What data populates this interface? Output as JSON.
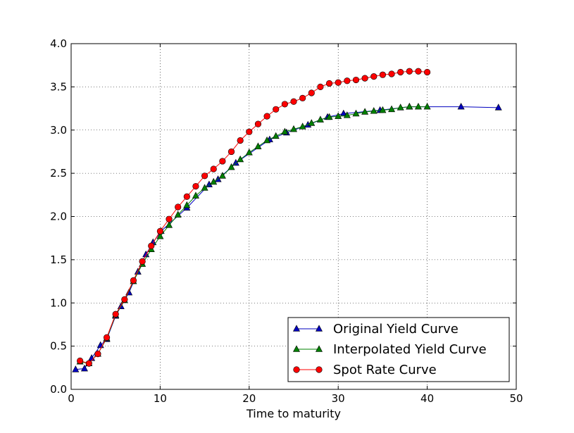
{
  "chart_data": {
    "type": "line",
    "title": "",
    "xlabel": "Time to maturity",
    "ylabel": "",
    "xlim": [
      0,
      50
    ],
    "ylim": [
      0.0,
      4.0
    ],
    "xticks": [
      "0",
      "10",
      "20",
      "30",
      "40",
      "50"
    ],
    "yticks": [
      "0.0",
      "0.5",
      "1.0",
      "1.5",
      "2.0",
      "2.5",
      "3.0",
      "3.5",
      "4.0"
    ],
    "grid": true,
    "legend_position": "lower-right",
    "series": [
      {
        "name": "Original Yield Curve",
        "color": "#0000bf",
        "marker": "triangle",
        "x": [
          0.5,
          1.5,
          2.3,
          3.3,
          4.0,
          5.0,
          5.6,
          6.5,
          7.5,
          8.4,
          9.2,
          10.1,
          13.0,
          15.5,
          16.5,
          18.5,
          22.3,
          24.2,
          26.6,
          28.8,
          30.6,
          34.7,
          38.0,
          43.8,
          48.0
        ],
        "y": [
          0.23,
          0.24,
          0.36,
          0.51,
          0.58,
          0.85,
          0.96,
          1.12,
          1.36,
          1.56,
          1.7,
          1.83,
          2.1,
          2.37,
          2.43,
          2.62,
          2.89,
          2.97,
          3.06,
          3.15,
          3.19,
          3.23,
          3.27,
          3.27,
          3.26
        ]
      },
      {
        "name": "Interpolated Yield Curve",
        "color": "#008000",
        "marker": "triangle",
        "x": [
          1,
          2,
          3,
          4,
          5,
          6,
          7,
          8,
          9,
          10,
          11,
          12,
          13,
          14,
          15,
          16,
          17,
          18,
          19,
          20,
          21,
          22,
          23,
          24,
          25,
          26,
          27,
          28,
          29,
          30,
          31,
          32,
          33,
          34,
          35,
          36,
          37,
          38,
          39,
          40
        ],
        "y": [
          0.32,
          0.3,
          0.41,
          0.59,
          0.86,
          1.03,
          1.25,
          1.45,
          1.62,
          1.77,
          1.9,
          2.02,
          2.13,
          2.24,
          2.33,
          2.4,
          2.47,
          2.57,
          2.66,
          2.74,
          2.81,
          2.88,
          2.93,
          2.98,
          3.01,
          3.04,
          3.08,
          3.12,
          3.15,
          3.16,
          3.17,
          3.19,
          3.21,
          3.22,
          3.23,
          3.24,
          3.26,
          3.27,
          3.27,
          3.27
        ]
      },
      {
        "name": "Spot Rate Curve",
        "color": "#ff0000",
        "marker": "circle",
        "x": [
          1,
          2,
          3,
          4,
          5,
          6,
          7,
          8,
          9,
          10,
          11,
          12,
          13,
          14,
          15,
          16,
          17,
          18,
          19,
          20,
          21,
          22,
          23,
          24,
          25,
          26,
          27,
          28,
          29,
          30,
          31,
          32,
          33,
          34,
          35,
          36,
          37,
          38,
          39,
          40
        ],
        "y": [
          0.33,
          0.3,
          0.41,
          0.6,
          0.87,
          1.04,
          1.26,
          1.48,
          1.66,
          1.83,
          1.97,
          2.11,
          2.23,
          2.35,
          2.47,
          2.55,
          2.64,
          2.75,
          2.88,
          2.98,
          3.07,
          3.16,
          3.24,
          3.3,
          3.33,
          3.37,
          3.43,
          3.5,
          3.54,
          3.55,
          3.57,
          3.58,
          3.6,
          3.62,
          3.64,
          3.65,
          3.67,
          3.68,
          3.68,
          3.67
        ]
      }
    ]
  }
}
